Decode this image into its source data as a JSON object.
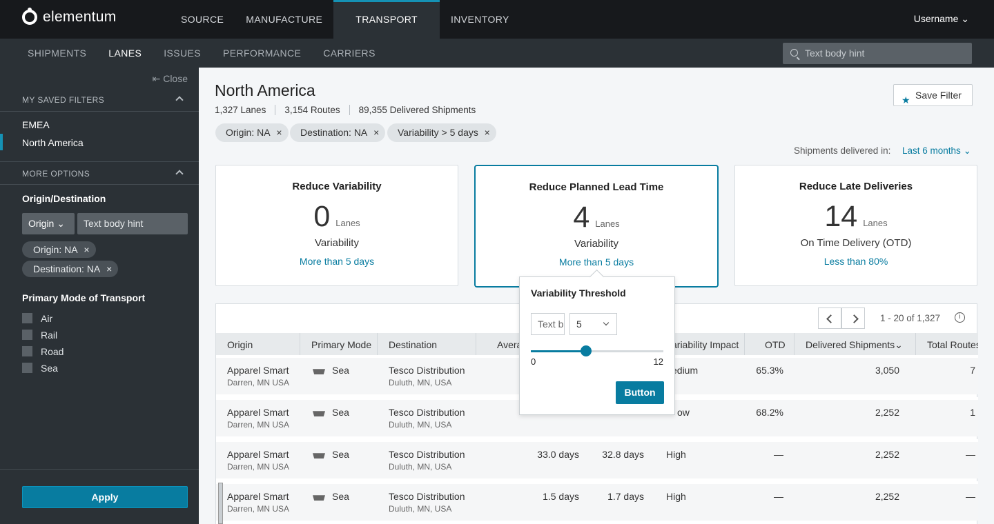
{
  "app": {
    "brand": "elementum",
    "user": "Username"
  },
  "topnav": [
    "SOURCE",
    "MANUFACTURE",
    "TRANSPORT",
    "INVENTORY"
  ],
  "subnav": [
    "SHIPMENTS",
    "LANES",
    "ISSUES",
    "PERFORMANCE",
    "CARRIERS"
  ],
  "search": {
    "placeholder": "Text body hint"
  },
  "sidebar": {
    "close": "Close",
    "saved_title": "MY SAVED FILTERS",
    "saved": [
      "EMEA",
      "North America"
    ],
    "more_title": "MORE OPTIONS",
    "origin_dest_label": "Origin/Destination",
    "origin_select": "Origin",
    "origin_input": "Text body hint",
    "chips": [
      "Origin: NA",
      "Destination: NA"
    ],
    "mode_label": "Primary Mode of Transport",
    "modes": [
      "Air",
      "Rail",
      "Road",
      "Sea"
    ],
    "apply": "Apply"
  },
  "main": {
    "title": "North America",
    "stats": [
      "1,327 Lanes",
      "3,154 Routes",
      "89,355 Delivered Shipments"
    ],
    "save_filter": "Save Filter",
    "chips": [
      "Origin: NA",
      "Destination: NA",
      "Variability > 5 days"
    ],
    "delivered_label": "Shipments delivered in:",
    "delivered_value": "Last 6 months",
    "cards": [
      {
        "title": "Reduce Variability",
        "count": "0",
        "unit": "Lanes",
        "metric": "Variability",
        "link": "More than 5 days"
      },
      {
        "title": "Reduce Planned Lead Time",
        "count": "4",
        "unit": "Lanes",
        "metric": "Variability",
        "link": "More than 5 days"
      },
      {
        "title": "Reduce Late Deliveries",
        "count": "14",
        "unit": "Lanes",
        "metric": "On Time Delivery (OTD)",
        "link": "Less than 80%"
      }
    ],
    "range": "1 - 20 of 1,327",
    "columns": [
      "Origin",
      "Primary Mode",
      "Destination",
      "Avera",
      "ariability Impact",
      "OTD",
      "Delivered Shipments",
      "Total Routes"
    ],
    "rows": [
      {
        "origin": "Apparel Smart",
        "origin_sub": "Darren, MN USA",
        "mode": "Sea",
        "dest": "Tesco Distribution",
        "dest_sub": "Duluth, MN, USA",
        "avg": "",
        "planned": "",
        "impact": "edium",
        "otd": "65.3%",
        "delivered": "3,050",
        "routes": "7"
      },
      {
        "origin": "Apparel Smart",
        "origin_sub": "Darren, MN USA",
        "mode": "Sea",
        "dest": "Tesco Distribution",
        "dest_sub": "Duluth, MN, USA",
        "avg": "",
        "planned": "",
        "impact": "ow",
        "otd": "68.2%",
        "delivered": "2,252",
        "routes": "1"
      },
      {
        "origin": "Apparel Smart",
        "origin_sub": "Darren, MN USA",
        "mode": "Sea",
        "dest": "Tesco Distribution",
        "dest_sub": "Duluth, MN, USA",
        "avg": "33.0 days",
        "planned": "32.8 days",
        "impact": "High",
        "otd": "—",
        "delivered": "2,252",
        "routes": "—"
      },
      {
        "origin": "Apparel Smart",
        "origin_sub": "Darren, MN USA",
        "mode": "Sea",
        "dest": "Tesco Distribution",
        "dest_sub": "Duluth, MN, USA",
        "avg": "1.5 days",
        "planned": "1.7 days",
        "impact": "High",
        "otd": "—",
        "delivered": "2,252",
        "routes": "—"
      }
    ]
  },
  "popover": {
    "title": "Variability Threshold",
    "text_value": "Text bo",
    "select_value": "5",
    "min": "0",
    "max": "12",
    "value": 5,
    "button": "Button"
  }
}
